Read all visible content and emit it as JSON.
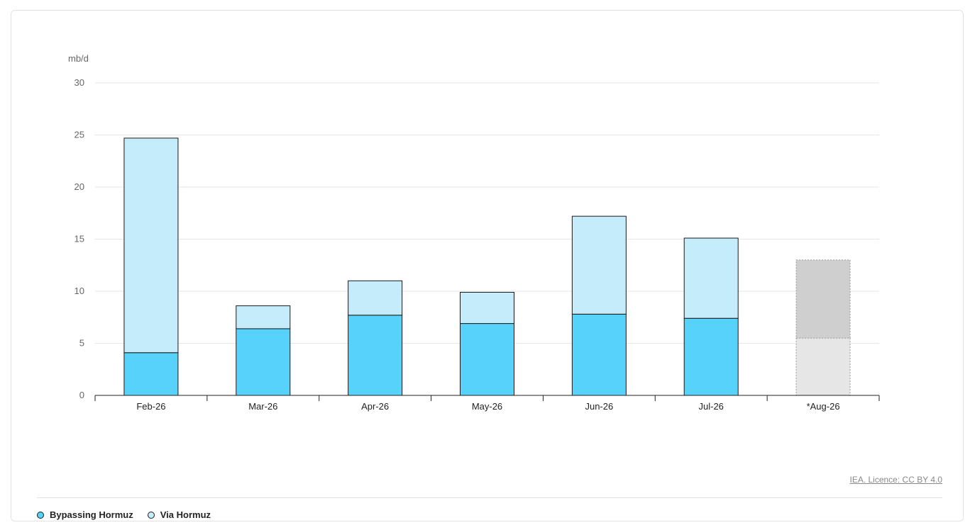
{
  "licence_text": "IEA. Licence: CC BY 4.0",
  "legend": [
    {
      "label": "Bypassing Hormuz",
      "color": "#57d3fb"
    },
    {
      "label": "Via Hormuz",
      "color": "#c5ecfa"
    }
  ],
  "chart_data": {
    "type": "bar",
    "stacked": true,
    "ylabel": "mb/d",
    "ylim": [
      0,
      30
    ],
    "yticks": [
      0,
      5,
      10,
      15,
      20,
      25,
      30
    ],
    "grid": true,
    "legend_position": "bottom-left",
    "categories": [
      "Feb-26",
      "Mar-26",
      "Apr-26",
      "May-26",
      "Jun-26",
      "Jul-26",
      "*Aug-26"
    ],
    "series": [
      {
        "name": "Bypassing Hormuz",
        "color": "#57d3fb",
        "values": [
          4.1,
          6.4,
          7.7,
          6.9,
          7.8,
          7.4,
          5.5
        ]
      },
      {
        "name": "Via Hormuz",
        "color": "#c5ecfa",
        "values": [
          20.6,
          2.2,
          3.3,
          3.0,
          9.4,
          7.7,
          7.5
        ]
      }
    ],
    "projected_categories": [
      "*Aug-26"
    ],
    "projected_colors": [
      "#e6e6e6",
      "#cfcfcf"
    ]
  }
}
